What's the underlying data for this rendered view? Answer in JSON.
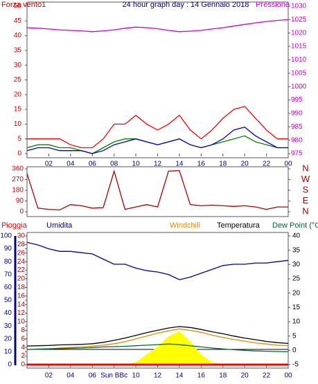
{
  "chart_data": [
    {
      "type": "line",
      "title": "24 hour graph day : 14 Gennaio 2018",
      "ylabel": "Forza vento1",
      "y2label": "Pressione",
      "x": [
        0,
        1,
        2,
        3,
        4,
        5,
        6,
        7,
        8,
        9,
        10,
        11,
        12,
        13,
        14,
        15,
        16,
        17,
        18,
        19,
        20,
        21,
        22,
        23,
        24
      ],
      "xlim": [
        0,
        24
      ],
      "xticks": [
        {
          "value": 2,
          "label": "02"
        },
        {
          "value": 4,
          "label": "04"
        },
        {
          "value": 6,
          "label": "06"
        },
        {
          "value": 8,
          "label": "08"
        },
        10,
        12,
        14,
        16,
        18,
        20,
        22,
        {
          "value": 24,
          "label": "00"
        }
      ],
      "ylim": [
        0,
        50
      ],
      "yticks": [
        0,
        5,
        10,
        15,
        20,
        25,
        30,
        35,
        40,
        45,
        50
      ],
      "y2lim": [
        975,
        1030
      ],
      "y2ticks": [
        975,
        980,
        985,
        990,
        995,
        1000,
        1005,
        1010,
        1015,
        1020,
        1025,
        1030
      ],
      "series": [
        {
          "color": "#ff0000",
          "values": [
            5,
            5,
            5,
            5,
            3,
            2,
            2,
            5,
            10,
            10,
            13,
            10,
            8,
            10,
            13,
            8,
            5,
            8,
            12,
            15,
            16,
            12,
            8,
            5,
            5
          ]
        },
        {
          "color": "#008000",
          "values": [
            2,
            3,
            3,
            2,
            2,
            1,
            0,
            2,
            4,
            5,
            5,
            4,
            3,
            4,
            5,
            3,
            2,
            3,
            4,
            5,
            6,
            4,
            3,
            2,
            2
          ]
        },
        {
          "color": "#0000cc",
          "values": [
            1,
            2,
            2,
            1,
            1,
            1,
            0,
            1,
            3,
            4,
            5,
            4,
            3,
            4,
            5,
            3,
            2,
            3,
            5,
            8,
            9,
            6,
            4,
            2,
            2
          ]
        },
        {
          "color": "#cc00cc",
          "axis": "y2",
          "values": [
            1022,
            1021.8,
            1021.5,
            1021.2,
            1021,
            1020.8,
            1020.5,
            1020.8,
            1021.2,
            1021.8,
            1022.2,
            1022,
            1021.6,
            1021,
            1020.5,
            1020.7,
            1021,
            1021.5,
            1022,
            1022.6,
            1023.2,
            1023.8,
            1024.3,
            1024.7,
            1025
          ]
        }
      ]
    },
    {
      "type": "line",
      "x": [
        0,
        1,
        2,
        3,
        4,
        5,
        6,
        7,
        8,
        9,
        10,
        11,
        12,
        13,
        14,
        15,
        16,
        17,
        18,
        19,
        20,
        21,
        22,
        23,
        24
      ],
      "xlim": [
        0,
        24
      ],
      "ylim": [
        0,
        360
      ],
      "yticks": [
        0,
        90,
        180,
        270,
        360
      ],
      "y2lim": [
        0,
        360
      ],
      "y2ticks": [
        {
          "value": 0,
          "label": "N"
        },
        {
          "value": 90,
          "label": "E"
        },
        {
          "value": 180,
          "label": "S"
        },
        {
          "value": 270,
          "label": "W"
        },
        {
          "value": 360,
          "label": "N"
        }
      ],
      "series": [
        {
          "color": "#aa0000",
          "values": [
            320,
            30,
            20,
            15,
            60,
            50,
            30,
            35,
            340,
            20,
            40,
            60,
            40,
            340,
            345,
            60,
            50,
            55,
            50,
            45,
            50,
            40,
            20,
            40,
            40
          ]
        }
      ]
    },
    {
      "type": "line",
      "x": [
        0,
        1,
        2,
        3,
        4,
        5,
        6,
        7,
        8,
        9,
        10,
        11,
        12,
        13,
        14,
        15,
        16,
        17,
        18,
        19,
        20,
        21,
        22,
        23,
        24
      ],
      "xlim": [
        0,
        24
      ],
      "xticks": [
        {
          "value": 2,
          "label": "02"
        },
        {
          "value": 4,
          "label": "04"
        },
        {
          "value": 6,
          "label": "06"
        },
        {
          "value": 8,
          "label": "Sun BBc"
        },
        10,
        12,
        14,
        16,
        18,
        20,
        22,
        {
          "value": 24,
          "label": "00"
        }
      ],
      "ylim": [
        0,
        100
      ],
      "yticks": [
        0,
        10,
        20,
        30,
        40,
        50,
        60,
        70,
        80,
        90,
        100
      ],
      "y3lim": [
        0,
        30
      ],
      "y3ticks": [
        0,
        2,
        4,
        6,
        8,
        10,
        12,
        14,
        16,
        18,
        20,
        22,
        24,
        26,
        28,
        30
      ],
      "y2lim": [
        -5,
        40
      ],
      "y2ticks": [
        -5,
        0,
        5,
        10,
        15,
        20,
        25,
        30,
        35,
        40
      ],
      "series": [
        {
          "name": "Pioggia",
          "color": "#ff0000",
          "axis": "y3",
          "values": [
            0,
            0,
            0,
            0,
            0,
            0,
            0,
            0,
            0,
            0,
            0,
            0,
            0,
            0,
            0,
            0,
            0,
            0,
            0,
            0,
            0,
            0,
            0,
            0,
            0
          ]
        },
        {
          "name": "Umidita",
          "color": "#000099",
          "values": [
            95,
            93,
            90,
            88,
            88,
            87,
            86,
            82,
            78,
            78,
            75,
            73,
            72,
            70,
            66,
            68,
            71,
            74,
            77,
            78,
            78,
            79,
            79,
            80,
            81
          ]
        },
        {
          "name": "Windchill",
          "color": "#e08a00",
          "axis": "y2",
          "values": [
            0.3,
            0.5,
            0.6,
            0.8,
            1.0,
            1.2,
            1.5,
            1.8,
            2.3,
            3.0,
            4.0,
            5.0,
            6.0,
            6.8,
            7.5,
            7.0,
            6.3,
            5.3,
            4.5,
            3.8,
            3.2,
            2.6,
            2.2,
            1.8,
            1.6
          ]
        },
        {
          "name": "Temperatura",
          "color": "#000000",
          "axis": "y2",
          "values": [
            1.5,
            1.6,
            1.7,
            1.9,
            2.0,
            2.1,
            2.3,
            2.8,
            3.5,
            4.3,
            5.2,
            6.2,
            7.0,
            7.8,
            8.3,
            8.0,
            7.3,
            6.5,
            5.8,
            5.0,
            4.3,
            3.7,
            3.1,
            2.7,
            2.4
          ]
        },
        {
          "name": "Dew Point (°C",
          "color": "#006633",
          "axis": "y2",
          "values": [
            0.3,
            0.4,
            0.5,
            0.6,
            0.7,
            0.8,
            1.0,
            1.2,
            1.3,
            1.4,
            1.6,
            1.8,
            2.0,
            2.2,
            2.0,
            1.6,
            1.2,
            0.8,
            0.5,
            0.2,
            0,
            -0.2,
            -0.3,
            -0.4,
            -0.5
          ]
        },
        {
          "color": "#ffff00",
          "fill": true,
          "values": [
            0,
            0,
            0,
            0,
            0,
            0,
            0,
            0,
            0,
            0,
            2,
            8,
            14,
            22,
            26,
            18,
            8,
            2,
            0,
            0,
            0,
            0,
            0,
            0,
            0
          ]
        }
      ]
    }
  ]
}
